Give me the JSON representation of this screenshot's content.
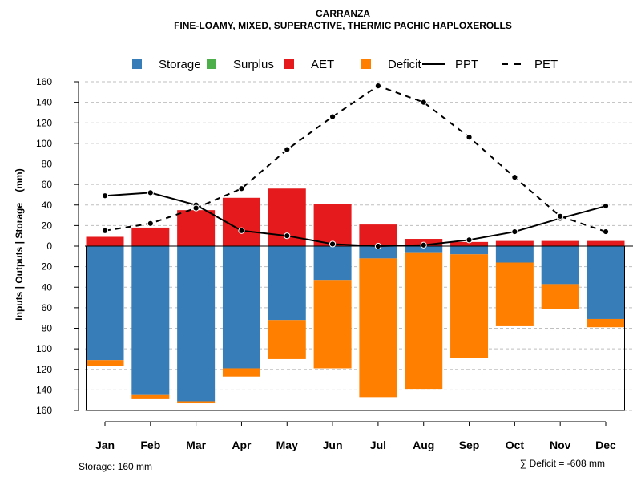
{
  "chart_data": {
    "type": "bar",
    "title": "CARRANZA",
    "subtitle": "FINE-LOAMY, MIXED, SUPERACTIVE, THERMIC PACHIC HAPLOXEROLLS",
    "ylabel": "Inputs | Outputs | Storage    (mm)",
    "xlabel": "",
    "categories": [
      "Jan",
      "Feb",
      "Mar",
      "Apr",
      "May",
      "Jun",
      "Jul",
      "Aug",
      "Sep",
      "Oct",
      "Nov",
      "Dec"
    ],
    "ylim": [
      -160,
      160
    ],
    "yticks": [
      -160,
      -140,
      -120,
      -100,
      -80,
      -60,
      -40,
      -20,
      0,
      20,
      40,
      60,
      80,
      100,
      120,
      140,
      160
    ],
    "ytick_labels": [
      "160",
      "140",
      "120",
      "100",
      "80",
      "60",
      "40",
      "20",
      "0",
      "20",
      "40",
      "60",
      "80",
      "100",
      "120",
      "140",
      "160"
    ],
    "grid": true,
    "legend_position": "top",
    "legend": [
      {
        "label": "Storage",
        "kind": "box",
        "color": "#377EB8"
      },
      {
        "label": "Surplus",
        "kind": "box",
        "color": "#4DAF4A"
      },
      {
        "label": "AET",
        "kind": "box",
        "color": "#E41A1C"
      },
      {
        "label": "Deficit",
        "kind": "box",
        "color": "#FF7F00"
      },
      {
        "label": "PPT",
        "kind": "solid-line",
        "color": "#000000"
      },
      {
        "label": "PET",
        "kind": "dashed-line",
        "color": "#000000"
      }
    ],
    "series": [
      {
        "name": "AET",
        "color": "#E41A1C",
        "values": [
          9,
          18,
          35,
          47,
          56,
          41,
          21,
          7,
          4,
          5,
          5,
          5
        ]
      },
      {
        "name": "Storage",
        "color": "#377EB8",
        "values": [
          111,
          145,
          151,
          119,
          72,
          33,
          12,
          6,
          8,
          16,
          37,
          71
        ]
      },
      {
        "name": "Deficit",
        "color": "#FF7F00",
        "values": [
          6,
          4,
          2,
          8,
          38,
          86,
          135,
          133,
          101,
          62,
          24,
          8
        ]
      },
      {
        "name": "Surplus",
        "color": "#4DAF4A",
        "values": [
          0,
          0,
          0,
          0,
          0,
          0,
          0,
          0,
          0,
          0,
          0,
          0
        ]
      },
      {
        "name": "PPT",
        "color": "#000000",
        "values": [
          49,
          52,
          40,
          15,
          10,
          2,
          0,
          1,
          6,
          14,
          27,
          39
        ]
      },
      {
        "name": "PET",
        "color": "#000000",
        "values": [
          15,
          22,
          37,
          56,
          94,
          126,
          156,
          140,
          106,
          67,
          29,
          14
        ]
      }
    ],
    "storage_capacity": 160,
    "annotations": {
      "storage": "Storage: 160 mm",
      "deficit": "∑ Deficit = -608 mm"
    }
  }
}
